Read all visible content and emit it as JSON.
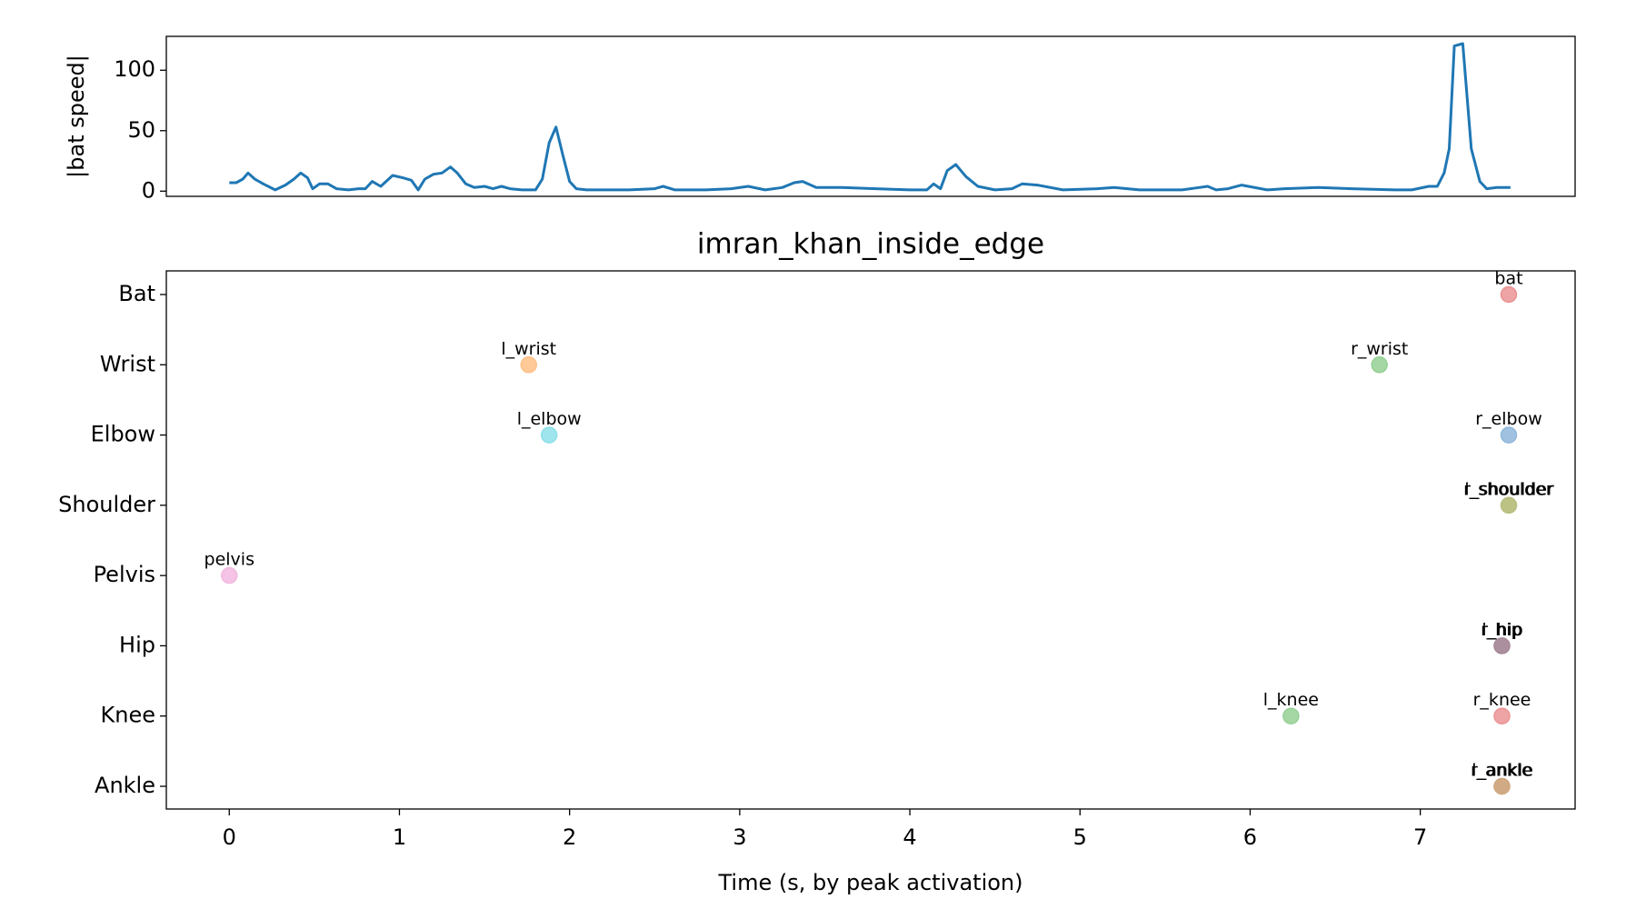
{
  "chart_data": [
    {
      "type": "line",
      "ylabel": "|bat speed|",
      "color": "#1f77b4",
      "x": [
        0,
        0.04,
        0.08,
        0.11,
        0.15,
        0.2,
        0.27,
        0.33,
        0.38,
        0.42,
        0.46,
        0.49,
        0.53,
        0.58,
        0.63,
        0.7,
        0.76,
        0.8,
        0.84,
        0.89,
        0.96,
        1.02,
        1.07,
        1.11,
        1.15,
        1.2,
        1.25,
        1.3,
        1.34,
        1.39,
        1.44,
        1.5,
        1.55,
        1.6,
        1.65,
        1.72,
        1.8,
        1.84,
        1.88,
        1.92,
        1.96,
        2.0,
        2.04,
        2.1,
        2.2,
        2.35,
        2.5,
        2.55,
        2.62,
        2.8,
        2.95,
        3.05,
        3.15,
        3.25,
        3.32,
        3.37,
        3.45,
        3.6,
        3.8,
        4.0,
        4.1,
        4.14,
        4.18,
        4.22,
        4.27,
        4.33,
        4.4,
        4.5,
        4.6,
        4.66,
        4.75,
        4.9,
        5.1,
        5.2,
        5.35,
        5.6,
        5.7,
        5.75,
        5.8,
        5.87,
        5.95,
        6.1,
        6.2,
        6.4,
        6.6,
        6.85,
        6.95,
        7.05,
        7.1,
        7.14,
        7.17,
        7.2,
        7.25,
        7.3,
        7.35,
        7.39,
        7.45,
        7.53
      ],
      "values": [
        7,
        7,
        10,
        15,
        10,
        6,
        1,
        5,
        10,
        15,
        11,
        2,
        6,
        6,
        2,
        1,
        2,
        2,
        8,
        4,
        13,
        11,
        9,
        1,
        10,
        14,
        15,
        20,
        15,
        6,
        3,
        4,
        2,
        4,
        2,
        1,
        1,
        10,
        40,
        53,
        30,
        8,
        2,
        1,
        1,
        1,
        2,
        4,
        1,
        1,
        2,
        4,
        1,
        3,
        7,
        8,
        3,
        3,
        2,
        1,
        1,
        6,
        2,
        17,
        22,
        12,
        4,
        1,
        2,
        6,
        5,
        1,
        2,
        3,
        1,
        1,
        3,
        4,
        1,
        2,
        5,
        1,
        2,
        3,
        2,
        1,
        1,
        4,
        4,
        15,
        35,
        120,
        122,
        35,
        8,
        2,
        3,
        3
      ],
      "xlim": [
        -0.37,
        7.91
      ],
      "ylim": [
        -4.3,
        128
      ],
      "yticks": [
        0,
        50,
        100
      ]
    },
    {
      "type": "scatter",
      "title": "imran_khan_inside_edge",
      "xlabel": "Time (s, by peak activation)",
      "categories": [
        "Bat",
        "Wrist",
        "Elbow",
        "Shoulder",
        "Pelvis",
        "Hip",
        "Knee",
        "Ankle"
      ],
      "points": [
        {
          "label": "bat",
          "x": 7.52,
          "y": "Bat",
          "color": "#eb9394"
        },
        {
          "label": "l_wrist",
          "x": 1.76,
          "y": "Wrist",
          "color": "#ffbf86"
        },
        {
          "label": "r_wrist",
          "x": 6.76,
          "y": "Wrist",
          "color": "#95d095"
        },
        {
          "label": "l_elbow",
          "x": 1.88,
          "y": "Elbow",
          "color": "#8ee0ea"
        },
        {
          "label": "r_elbow",
          "x": 7.52,
          "y": "Elbow",
          "color": "#8fb7db"
        },
        {
          "label": "l_shoulder",
          "x": 7.52,
          "y": "Shoulder",
          "color": "#c4c48a"
        },
        {
          "label": "r_shoulder",
          "x": 7.52,
          "y": "Shoulder",
          "color": "#b8bf80"
        },
        {
          "label": "pelvis",
          "x": 0.0,
          "y": "Pelvis",
          "color": "#f2b9e0"
        },
        {
          "label": "l_hip",
          "x": 7.48,
          "y": "Hip",
          "color": "#c5a3c8"
        },
        {
          "label": "r_hip",
          "x": 7.48,
          "y": "Hip",
          "color": "#a68a96"
        },
        {
          "label": "l_knee",
          "x": 6.24,
          "y": "Knee",
          "color": "#95d095"
        },
        {
          "label": "r_knee",
          "x": 7.48,
          "y": "Knee",
          "color": "#eb9394"
        },
        {
          "label": "l_ankle",
          "x": 7.48,
          "y": "Ankle",
          "color": "#c4a48a"
        },
        {
          "label": "r_ankle",
          "x": 7.48,
          "y": "Ankle",
          "color": "#d0a880"
        }
      ],
      "xlim": [
        -0.37,
        7.91
      ],
      "xticks": [
        0,
        1,
        2,
        3,
        4,
        5,
        6,
        7
      ]
    }
  ]
}
